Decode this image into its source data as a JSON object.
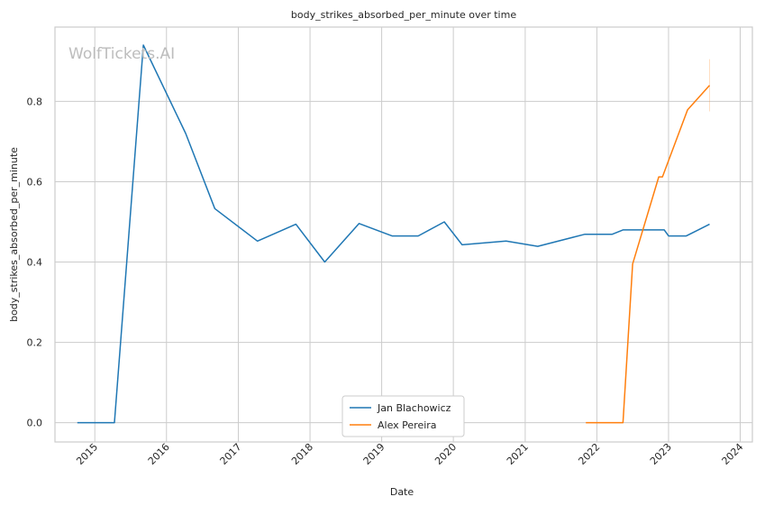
{
  "chart_data": {
    "type": "line",
    "title": "body_strikes_absorbed_per_minute over time",
    "xlabel": "Date",
    "ylabel": "body_strikes_absorbed_per_minute",
    "watermark": "WolfTickets.AI",
    "x_ticks": [
      "2015",
      "2016",
      "2017",
      "2018",
      "2019",
      "2020",
      "2021",
      "2022",
      "2023",
      "2024"
    ],
    "y_ticks": [
      "0.0",
      "0.2",
      "0.4",
      "0.6",
      "0.8"
    ],
    "xlim": [
      "2014-06-12",
      "2024-03-03"
    ],
    "ylim": [
      -0.048,
      0.985
    ],
    "grid": true,
    "legend_position": "bottom-center",
    "series": [
      {
        "name": "Jan Blachowicz",
        "color": "#1f77b4",
        "points": [
          [
            "2014-10-04",
            0.0
          ],
          [
            "2015-04-11",
            0.0
          ],
          [
            "2015-09-05",
            0.94
          ],
          [
            "2016-04-08",
            0.72
          ],
          [
            "2016-09-03",
            0.533
          ],
          [
            "2017-04-08",
            0.452
          ],
          [
            "2017-10-21",
            0.494
          ],
          [
            "2018-03-17",
            0.4
          ],
          [
            "2018-09-08",
            0.496
          ],
          [
            "2019-02-23",
            0.465
          ],
          [
            "2019-07-06",
            0.465
          ],
          [
            "2019-11-16",
            0.5
          ],
          [
            "2020-02-15",
            0.443
          ],
          [
            "2020-09-26",
            0.452
          ],
          [
            "2021-03-06",
            0.439
          ],
          [
            "2021-10-30",
            0.469
          ],
          [
            "2022-03-19",
            0.469
          ],
          [
            "2022-05-14",
            0.48
          ],
          [
            "2022-12-10",
            0.48
          ],
          [
            "2023-01-01",
            0.465
          ],
          [
            "2023-04-01",
            0.465
          ],
          [
            "2023-07-29",
            0.494
          ]
        ]
      },
      {
        "name": "Alex Pereira",
        "color": "#ff7f0e",
        "points": [
          [
            "2021-11-06",
            0.0
          ],
          [
            "2022-05-14",
            0.0
          ],
          [
            "2022-07-02",
            0.395
          ],
          [
            "2022-11-12",
            0.612
          ],
          [
            "2022-12-01",
            0.612
          ],
          [
            "2023-04-08",
            0.779
          ],
          [
            "2023-07-29",
            0.84
          ]
        ]
      }
    ]
  }
}
